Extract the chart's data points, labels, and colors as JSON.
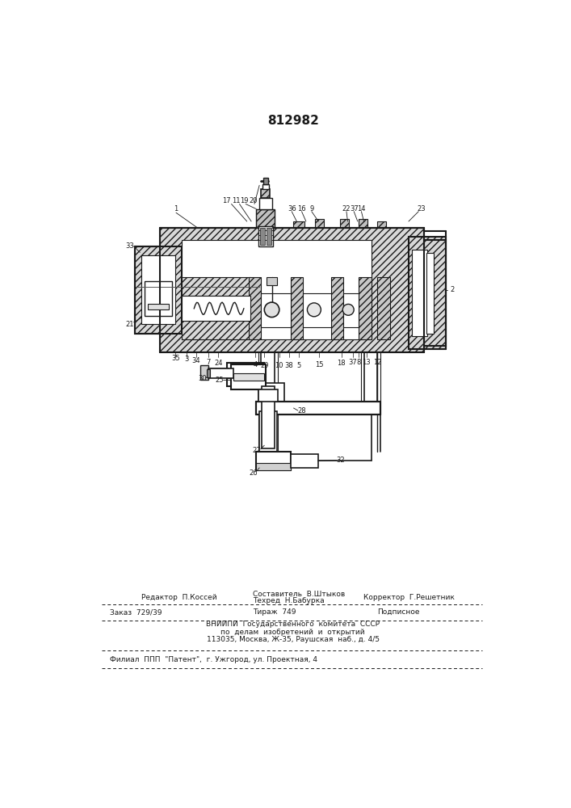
{
  "patent_number": "812982",
  "bg_color": "#f5f5f0",
  "drawing_color": "#1a1a1a",
  "fig_width": 7.07,
  "fig_height": 10.0,
  "dpi": 100,
  "footer": {
    "editor": "Редактор  П.Коссей",
    "composer": "Составитель  В.Штыков",
    "techred": "Техред  Н.Бабурка",
    "corrector": "Корректор  Г.Решетник",
    "order": "Заказ  729/39",
    "tirazh": "Тираж  749",
    "podpisnoe": "Подписное",
    "vniip1": "ВНИИПИ  Государственного  комитета  СССР",
    "vniip2": "по  делам  изобретений  и  открытий",
    "address": "113035, Москва, Ж-35, Раушская  наб., д. 4/5",
    "filial": "Филиал  ППП  \"Патент\",  г. Ужгород, ул. Проектная, 4"
  }
}
